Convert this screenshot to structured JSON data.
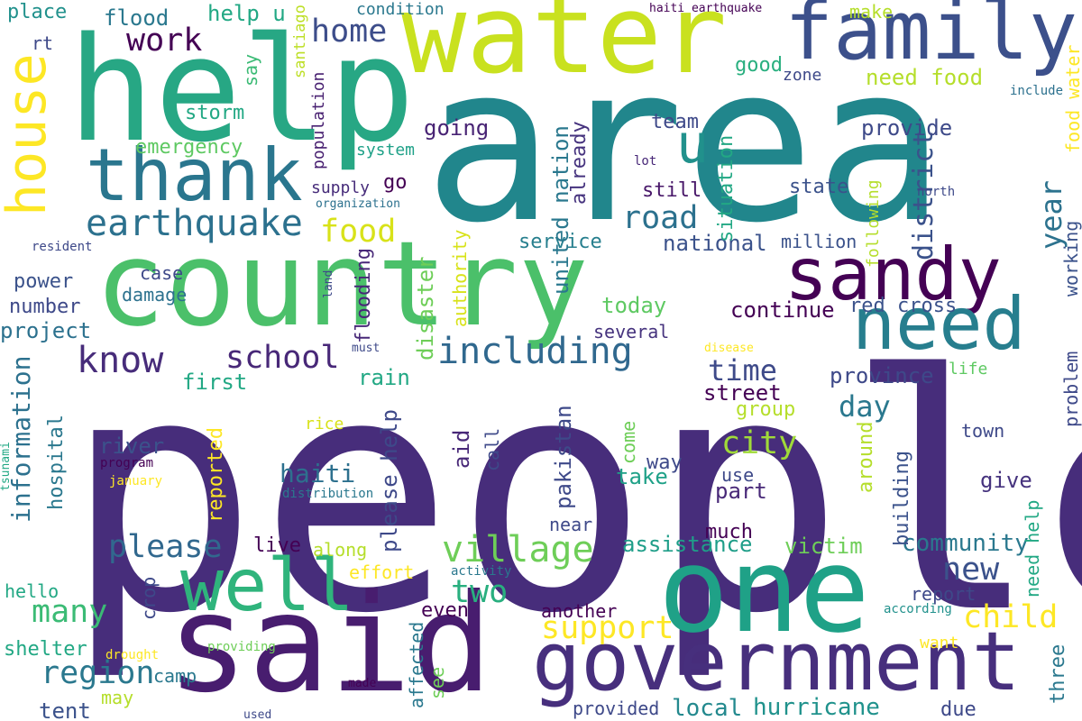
{
  "palette": {
    "background": "#ffffff",
    "colors": [
      "#46226e",
      "#472d7b",
      "#3b528b",
      "#2c718e",
      "#21908d",
      "#27ad81",
      "#5cc863",
      "#aadc32",
      "#fde725"
    ]
  },
  "words": [
    {
      "text": "people",
      "color": "#472d7b"
    },
    {
      "text": "area",
      "color": "#21868c"
    },
    {
      "text": "help",
      "color": "#27a784"
    },
    {
      "text": "water",
      "color": "#c9e11f"
    },
    {
      "text": "country",
      "color": "#4bc06a"
    },
    {
      "text": "said",
      "color": "#481d6f"
    },
    {
      "text": "one",
      "color": "#1fa187"
    },
    {
      "text": "government",
      "color": "#472f7d"
    },
    {
      "text": "family",
      "color": "#3c508b"
    },
    {
      "text": "thank",
      "color": "#2a768e"
    },
    {
      "text": "sandy",
      "color": "#440154"
    },
    {
      "text": "need",
      "color": "#277e8e"
    },
    {
      "text": "well",
      "color": "#2fb47c"
    },
    {
      "text": "house",
      "color": "#fde725"
    },
    {
      "text": "u",
      "color": "#21918c"
    },
    {
      "text": "earthquake",
      "color": "#2c718e"
    },
    {
      "text": "including",
      "color": "#30688e"
    },
    {
      "text": "village",
      "color": "#6ece58"
    },
    {
      "text": "support",
      "color": "#fde725"
    },
    {
      "text": "child",
      "color": "#fde725"
    },
    {
      "text": "city",
      "color": "#a0da39"
    },
    {
      "text": "region",
      "color": "#2a788e"
    },
    {
      "text": "school",
      "color": "#482878"
    },
    {
      "text": "know",
      "color": "#472c7a"
    },
    {
      "text": "please",
      "color": "#31688e"
    },
    {
      "text": "many",
      "color": "#3bbb75"
    },
    {
      "text": "food",
      "color": "#d8e219"
    },
    {
      "text": "road",
      "color": "#2c718e"
    },
    {
      "text": "district",
      "color": "#3b528b"
    },
    {
      "text": "new",
      "color": "#3b528b"
    },
    {
      "text": "two",
      "color": "#29af7f"
    },
    {
      "text": "work",
      "color": "#440154"
    },
    {
      "text": "home",
      "color": "#3d4d8a"
    },
    {
      "text": "time",
      "color": "#3e4a89"
    },
    {
      "text": "day",
      "color": "#2a788e"
    },
    {
      "text": "year",
      "color": "#2c728e"
    },
    {
      "text": "information",
      "color": "#2c718e"
    },
    {
      "text": "haiti",
      "color": "#2d708e"
    },
    {
      "text": "community",
      "color": "#2a788e"
    },
    {
      "text": "assistance",
      "color": "#1f9e89"
    },
    {
      "text": "hurricane",
      "color": "#20928c"
    },
    {
      "text": "local",
      "color": "#23898e"
    },
    {
      "text": "victim",
      "color": "#6ece58"
    },
    {
      "text": "continue",
      "color": "#440154"
    },
    {
      "text": "going",
      "color": "#482374"
    },
    {
      "text": "provide",
      "color": "#3e4a89"
    },
    {
      "text": "national",
      "color": "#3b528b"
    },
    {
      "text": "service",
      "color": "#277f8e"
    },
    {
      "text": "street",
      "color": "#440154"
    },
    {
      "text": "province",
      "color": "#3e4989"
    },
    {
      "text": "storm",
      "color": "#22a884"
    },
    {
      "text": "emergency",
      "color": "#5ec962"
    },
    {
      "text": "power",
      "color": "#3b528b"
    },
    {
      "text": "number",
      "color": "#3e4989"
    },
    {
      "text": "project",
      "color": "#2c718e"
    },
    {
      "text": "damage",
      "color": "#2c718e"
    },
    {
      "text": "case",
      "color": "#3e4989"
    },
    {
      "text": "flood",
      "color": "#2a788e"
    },
    {
      "text": "help u",
      "color": "#22a884"
    },
    {
      "text": "place",
      "color": "#21918c"
    },
    {
      "text": "rt",
      "color": "#3e4989"
    },
    {
      "text": "say",
      "color": "#3bbb75"
    },
    {
      "text": "santiago",
      "color": "#bddf26"
    },
    {
      "text": "population",
      "color": "#482071"
    },
    {
      "text": "system",
      "color": "#1fa188"
    },
    {
      "text": "supply",
      "color": "#472c7a"
    },
    {
      "text": "go",
      "color": "#440154"
    },
    {
      "text": "organization",
      "color": "#2c718e"
    },
    {
      "text": "condition",
      "color": "#2a788e"
    },
    {
      "text": "make",
      "color": "#b5de2b"
    },
    {
      "text": "good",
      "color": "#29af7f"
    },
    {
      "text": "zone",
      "color": "#3e4989"
    },
    {
      "text": "need food",
      "color": "#b5de2b"
    },
    {
      "text": "food water",
      "color": "#fde725"
    },
    {
      "text": "include",
      "color": "#2c718e"
    },
    {
      "text": "haiti earthquake",
      "color": "#440154"
    },
    {
      "text": "team",
      "color": "#3e4989"
    },
    {
      "text": "situation",
      "color": "#22a884"
    },
    {
      "text": "united nation",
      "color": "#2a788e"
    },
    {
      "text": "already",
      "color": "#46337e"
    },
    {
      "text": "still",
      "color": "#481769"
    },
    {
      "text": "state",
      "color": "#3b528b"
    },
    {
      "text": "lot",
      "color": "#482878"
    },
    {
      "text": "north",
      "color": "#3e4989"
    },
    {
      "text": "million",
      "color": "#3b528b"
    },
    {
      "text": "following",
      "color": "#b5de2b"
    },
    {
      "text": "working",
      "color": "#3b528b"
    },
    {
      "text": "resident",
      "color": "#3e4989"
    },
    {
      "text": "land",
      "color": "#3e4989"
    },
    {
      "text": "must",
      "color": "#3e4989"
    },
    {
      "text": "disease",
      "color": "#fde725"
    },
    {
      "text": "flooding",
      "color": "#482878"
    },
    {
      "text": "disaster",
      "color": "#6ece58"
    },
    {
      "text": "authority",
      "color": "#d8e219"
    },
    {
      "text": "today",
      "color": "#5ec962"
    },
    {
      "text": "several",
      "color": "#46337e"
    },
    {
      "text": "red cross",
      "color": "#3b528b"
    },
    {
      "text": "rain",
      "color": "#22a884"
    },
    {
      "text": "first",
      "color": "#22a884"
    },
    {
      "text": "life",
      "color": "#5ec962"
    },
    {
      "text": "problem",
      "color": "#3e4989"
    },
    {
      "text": "group",
      "color": "#b5de2b"
    },
    {
      "text": "rice",
      "color": "#d8e219"
    },
    {
      "text": "town",
      "color": "#3e4989"
    },
    {
      "text": "river",
      "color": "#3b528b"
    },
    {
      "text": "please help",
      "color": "#3e4989"
    },
    {
      "text": "pakistan",
      "color": "#3e4989"
    },
    {
      "text": "aid",
      "color": "#482878"
    },
    {
      "text": "call",
      "color": "#3e4989"
    },
    {
      "text": "come",
      "color": "#6ece58"
    },
    {
      "text": "way",
      "color": "#3e4989"
    },
    {
      "text": "around",
      "color": "#b5de2b"
    },
    {
      "text": "building",
      "color": "#3b528b"
    },
    {
      "text": "take",
      "color": "#1fa188"
    },
    {
      "text": "use",
      "color": "#3e4989"
    },
    {
      "text": "give",
      "color": "#46337e"
    },
    {
      "text": "part",
      "color": "#482878"
    },
    {
      "text": "hospital",
      "color": "#2a788e"
    },
    {
      "text": "tsunami",
      "color": "#22a884"
    },
    {
      "text": "program",
      "color": "#440154"
    },
    {
      "text": "january",
      "color": "#fde725"
    },
    {
      "text": "distribution",
      "color": "#2a788e"
    },
    {
      "text": "reported",
      "color": "#fde725"
    },
    {
      "text": "near",
      "color": "#3e4989"
    },
    {
      "text": "much",
      "color": "#440154"
    },
    {
      "text": "need help",
      "color": "#22a884"
    },
    {
      "text": "live",
      "color": "#440154"
    },
    {
      "text": "along",
      "color": "#b5de2b"
    },
    {
      "text": "effort",
      "color": "#fde725"
    },
    {
      "text": "activity",
      "color": "#2a788e"
    },
    {
      "text": "hello",
      "color": "#22a884"
    },
    {
      "text": "crop",
      "color": "#3e4989"
    },
    {
      "text": "even",
      "color": "#440154"
    },
    {
      "text": "another",
      "color": "#440154"
    },
    {
      "text": "report",
      "color": "#3e4989"
    },
    {
      "text": "according",
      "color": "#21918c"
    },
    {
      "text": "shelter",
      "color": "#22a884"
    },
    {
      "text": "drought",
      "color": "#fde725"
    },
    {
      "text": "providing",
      "color": "#6ece58"
    },
    {
      "text": "affected",
      "color": "#2a788e"
    },
    {
      "text": "want",
      "color": "#fde725"
    },
    {
      "text": "camp",
      "color": "#2a788e"
    },
    {
      "text": "may",
      "color": "#b5de2b"
    },
    {
      "text": "made",
      "color": "#440154"
    },
    {
      "text": "see",
      "color": "#6ece58"
    },
    {
      "text": "three",
      "color": "#2a788e"
    },
    {
      "text": "tent",
      "color": "#3b528b"
    },
    {
      "text": "used",
      "color": "#3e4989"
    },
    {
      "text": "provided",
      "color": "#3e4989"
    },
    {
      "text": "due",
      "color": "#3e4989"
    }
  ]
}
